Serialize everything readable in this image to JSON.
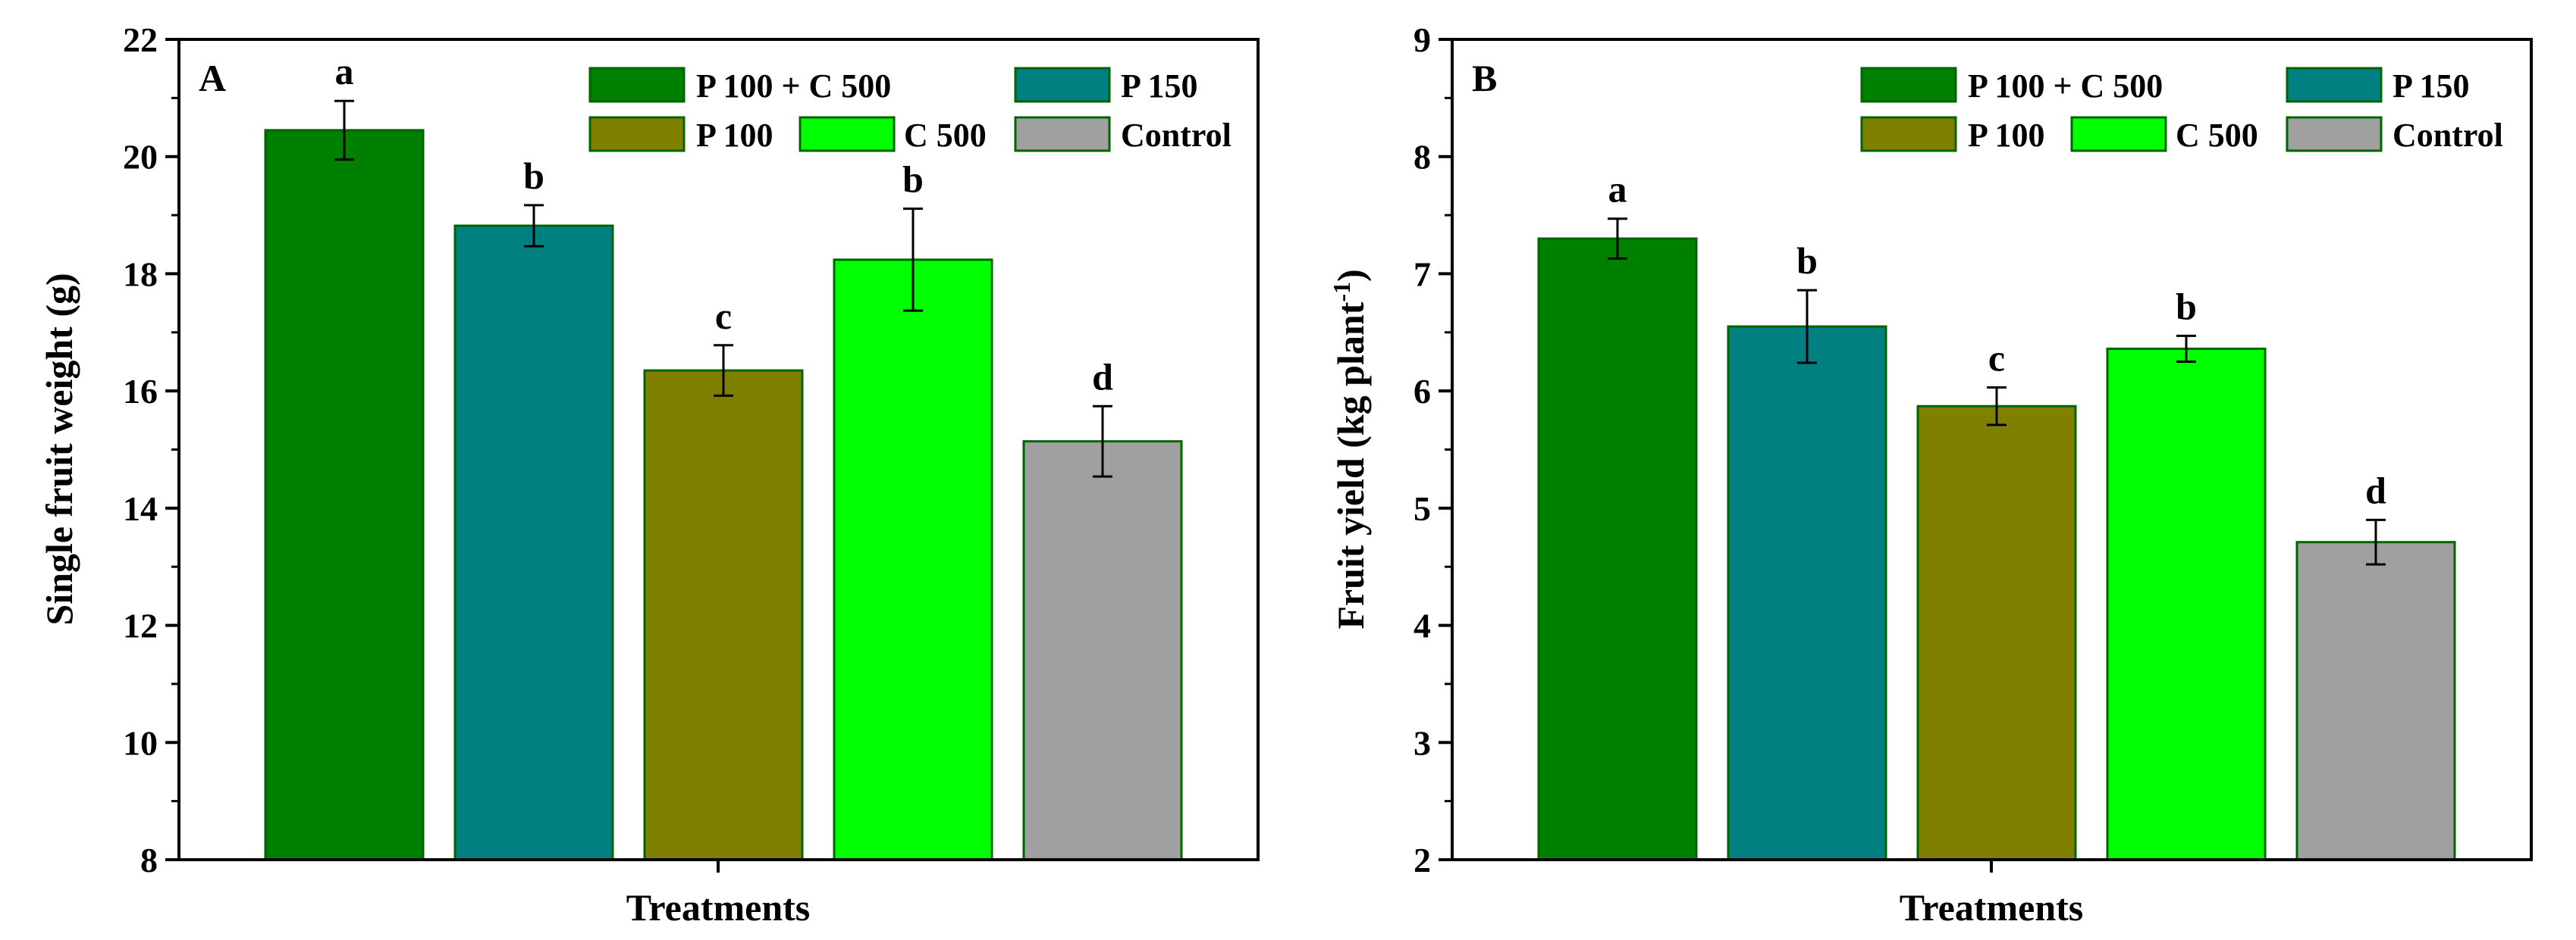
{
  "chart_data": [
    {
      "type": "bar",
      "panel_label": "A",
      "title": "",
      "xlabel": "Treatments",
      "ylabel": "Single fruit weight (g)",
      "ylim": [
        8,
        22
      ],
      "yticks": [
        8,
        10,
        12,
        14,
        16,
        18,
        20,
        22
      ],
      "grid": false,
      "legend_position": "top-right",
      "bars": [
        {
          "name": "P 100 + C 500",
          "value": 20.45,
          "error": 0.5,
          "letter": "a",
          "color": "#008000"
        },
        {
          "name": "P 150",
          "value": 18.82,
          "error": 0.35,
          "letter": "b",
          "color": "#008080"
        },
        {
          "name": "P 100",
          "value": 16.35,
          "error": 0.43,
          "letter": "c",
          "color": "#808000"
        },
        {
          "name": "C 500",
          "value": 18.24,
          "error": 0.87,
          "letter": "b",
          "color": "#00FF00"
        },
        {
          "name": "Control",
          "value": 15.14,
          "error": 0.6,
          "letter": "d",
          "color": "#A0A0A0"
        }
      ]
    },
    {
      "type": "bar",
      "panel_label": "B",
      "title": "",
      "xlabel": "Treatments",
      "ylabel_main": "Fruit yield (kg plant",
      "ylabel_sup": "-1",
      "ylabel_close": ")",
      "ylim": [
        2,
        9
      ],
      "yticks": [
        2,
        3,
        4,
        5,
        6,
        7,
        8,
        9
      ],
      "grid": false,
      "legend_position": "top-right",
      "bars": [
        {
          "name": "P 100 + C 500",
          "value": 7.3,
          "error": 0.17,
          "letter": "a",
          "color": "#008000"
        },
        {
          "name": "P 150",
          "value": 6.55,
          "error": 0.31,
          "letter": "b",
          "color": "#008080"
        },
        {
          "name": "P 100",
          "value": 5.87,
          "error": 0.16,
          "letter": "c",
          "color": "#808000"
        },
        {
          "name": "C 500",
          "value": 6.36,
          "error": 0.11,
          "letter": "b",
          "color": "#00FF00"
        },
        {
          "name": "Control",
          "value": 4.71,
          "error": 0.19,
          "letter": "d",
          "color": "#A0A0A0"
        }
      ]
    }
  ]
}
